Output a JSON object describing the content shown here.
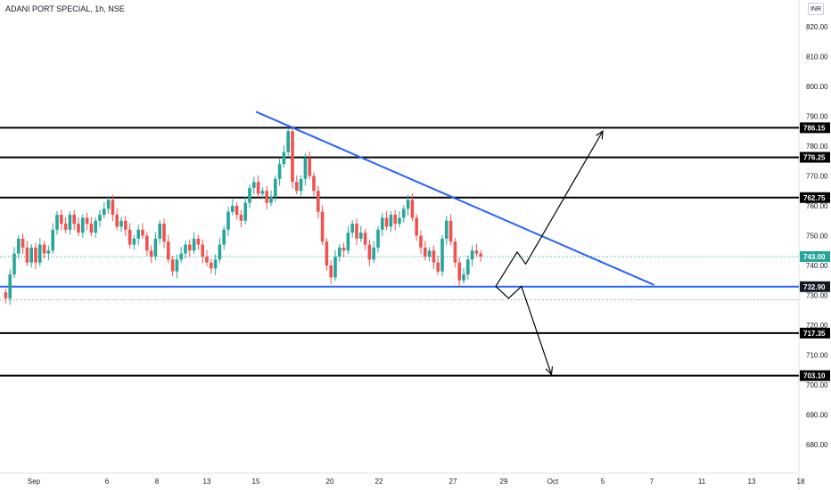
{
  "header": {
    "title": "ADANI PORT SPECIAL, 1h, NSE",
    "currency": "INR"
  },
  "colors": {
    "up": "#26a69a",
    "down": "#ef5350",
    "level_line": "#000000",
    "trend_line": "#2962ff",
    "current_price_badge": "#26a69a"
  },
  "chart_data": {
    "type": "candlestick",
    "symbol": "ADANI PORT SPECIAL",
    "interval": "1h",
    "exchange": "NSE",
    "y_ticks": [
      820.0,
      810.0,
      800.0,
      790.0,
      780.0,
      770.0,
      760.0,
      750.0,
      740.0,
      730.0,
      720.0,
      710.0,
      700.0,
      690.0,
      680.0
    ],
    "ylim": [
      675,
      825
    ],
    "x_ticks": [
      "Sep",
      "6",
      "8",
      "13",
      "15",
      "20",
      "22",
      "27",
      "29",
      "Oct",
      "5",
      "7",
      "11",
      "13",
      "18"
    ],
    "horizontal_levels": [
      {
        "value": 786.15,
        "label": "786.15"
      },
      {
        "value": 776.25,
        "label": "776.25"
      },
      {
        "value": 762.75,
        "label": "762.75"
      },
      {
        "value": 732.9,
        "label": "732.90"
      },
      {
        "value": 717.35,
        "label": "717.35"
      },
      {
        "value": 703.1,
        "label": "703.10"
      }
    ],
    "current_price": {
      "value": 743.0,
      "label": "743.00"
    },
    "closes": [
      729,
      737,
      744,
      749,
      746,
      741,
      746,
      741,
      747,
      744,
      745,
      752,
      757,
      754,
      752,
      757,
      754,
      751,
      756,
      754,
      751,
      755,
      757,
      759,
      762,
      757,
      753,
      755,
      752,
      747,
      749,
      752,
      750,
      745,
      743,
      749,
      754,
      748,
      742,
      738,
      742,
      744,
      747,
      745,
      749,
      747,
      743,
      741,
      739,
      742,
      747,
      752,
      758,
      760,
      757,
      755,
      761,
      766,
      768,
      764,
      765,
      761,
      763,
      769,
      774,
      778,
      785,
      768,
      765,
      769,
      776,
      770,
      765,
      758,
      748,
      740,
      736,
      743,
      746,
      745,
      751,
      754,
      749,
      751,
      747,
      742,
      746,
      752,
      756,
      753,
      757,
      754,
      756,
      759,
      762,
      756,
      750,
      746,
      743,
      745,
      741,
      738,
      749,
      755,
      748,
      741,
      735,
      737,
      742,
      745,
      744,
      743
    ],
    "trend_line": {
      "from": {
        "bar": 59,
        "value": 791.5
      },
      "to": {
        "bar": 152,
        "value": 733.5
      }
    },
    "projection_up": [
      {
        "bar": 115,
        "value": 733.0
      },
      {
        "bar": 120,
        "value": 744.5
      },
      {
        "bar": 122,
        "value": 740.5
      },
      {
        "bar": 140,
        "value": 785.0
      }
    ],
    "projection_down": [
      {
        "bar": 115,
        "value": 733.0
      },
      {
        "bar": 118,
        "value": 729.0
      },
      {
        "bar": 121,
        "value": 733.0
      },
      {
        "bar": 128,
        "value": 703.5
      }
    ]
  }
}
